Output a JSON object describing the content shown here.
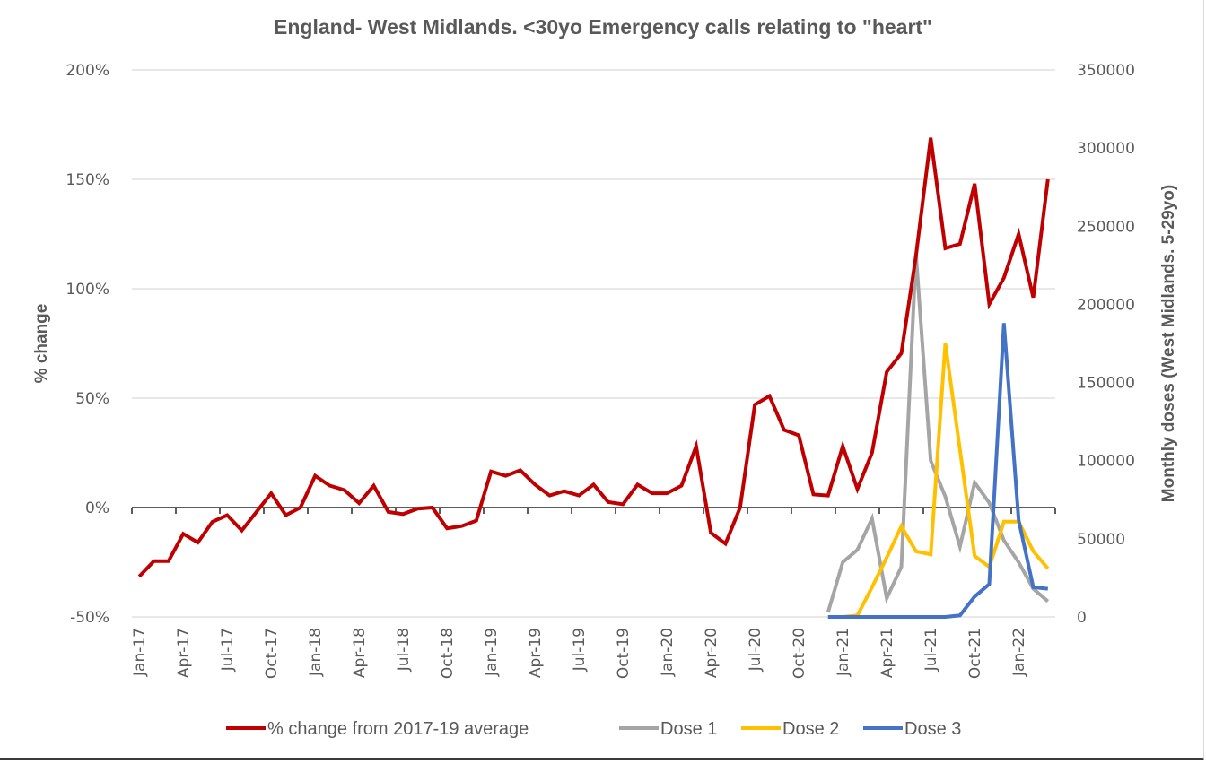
{
  "chart_data": {
    "type": "line",
    "title": "England- West Midlands. <30yo Emergency calls relating to \"heart\"",
    "ylabel": "% change",
    "y2label": "Monthly doses (West Midlands. 5-29yo)",
    "xlabel": "",
    "ylim": [
      -50,
      200
    ],
    "y2lim": [
      0,
      350000
    ],
    "y_ticks": [
      "-50%",
      "0%",
      "50%",
      "100%",
      "150%",
      "200%"
    ],
    "y_tick_values": [
      -50,
      0,
      50,
      100,
      150,
      200
    ],
    "y2_ticks": [
      "0",
      "50000",
      "100000",
      "150000",
      "200000",
      "250000",
      "300000",
      "350000"
    ],
    "y2_tick_values": [
      0,
      50000,
      100000,
      150000,
      200000,
      250000,
      300000,
      350000
    ],
    "grid": true,
    "legend_position": "bottom",
    "x_tick_labels": [
      "Jan-17",
      "Apr-17",
      "Jul-17",
      "Oct-17",
      "Jan-18",
      "Apr-18",
      "Jul-18",
      "Oct-18",
      "Jan-19",
      "Apr-19",
      "Jul-19",
      "Oct-19",
      "Jan-20",
      "Apr-20",
      "Jul-20",
      "Oct-20",
      "Jan-21",
      "Apr-21",
      "Jul-21",
      "Oct-21",
      "Jan-22"
    ],
    "x_months": [
      "Jan-17",
      "Feb-17",
      "Mar-17",
      "Apr-17",
      "May-17",
      "Jun-17",
      "Jul-17",
      "Aug-17",
      "Sep-17",
      "Oct-17",
      "Nov-17",
      "Dec-17",
      "Jan-18",
      "Feb-18",
      "Mar-18",
      "Apr-18",
      "May-18",
      "Jun-18",
      "Jul-18",
      "Aug-18",
      "Sep-18",
      "Oct-18",
      "Nov-18",
      "Dec-18",
      "Jan-19",
      "Feb-19",
      "Mar-19",
      "Apr-19",
      "May-19",
      "Jun-19",
      "Jul-19",
      "Aug-19",
      "Sep-19",
      "Oct-19",
      "Nov-19",
      "Dec-19",
      "Jan-20",
      "Feb-20",
      "Mar-20",
      "Apr-20",
      "May-20",
      "Jun-20",
      "Jul-20",
      "Aug-20",
      "Sep-20",
      "Oct-20",
      "Nov-20",
      "Dec-20",
      "Jan-21",
      "Feb-21",
      "Mar-21",
      "Apr-21",
      "May-21",
      "Jun-21",
      "Jul-21",
      "Aug-21",
      "Sep-21",
      "Oct-21",
      "Nov-21",
      "Dec-21",
      "Jan-22",
      "Feb-22",
      "Mar-22"
    ],
    "series": [
      {
        "name": "% change from 2017-19 average",
        "axis": "left",
        "color": "#c00000",
        "start_index": 0,
        "values": [
          -31.5,
          -24.5,
          -24.5,
          -12,
          -16,
          -6.5,
          -3.5,
          -10.5,
          -2,
          6.5,
          -3.5,
          0,
          14.5,
          10,
          8,
          2,
          10,
          -2,
          -3,
          -0.5,
          0,
          -9.5,
          -8.5,
          -6,
          16.5,
          14.5,
          17,
          10.5,
          5.5,
          7.5,
          5.5,
          10.5,
          2.5,
          1.5,
          10.5,
          6.5,
          6.5,
          10,
          28,
          -11.5,
          -16.5,
          0,
          47,
          51,
          35.5,
          33,
          6,
          5.5,
          28,
          8.5,
          25,
          62,
          70.5,
          115,
          169,
          118.5,
          120.5,
          148,
          93,
          105,
          125,
          96,
          150
        ]
      },
      {
        "name": "Dose 1",
        "axis": "right",
        "color": "#a5a5a5",
        "start_index": 47,
        "values": [
          3000,
          35000,
          43000,
          63000,
          12000,
          32000,
          232000,
          100000,
          77000,
          45000,
          86000,
          73000,
          49000,
          35000,
          18000,
          10000
        ]
      },
      {
        "name": "Dose 2",
        "axis": "right",
        "color": "#ffc000",
        "start_index": 47,
        "values": [
          0,
          0,
          1000,
          19000,
          38000,
          58000,
          42000,
          40000,
          175000,
          107000,
          39000,
          32000,
          61000,
          61000,
          42000,
          31000
        ]
      },
      {
        "name": "Dose 3",
        "axis": "right",
        "color": "#4472c4",
        "start_index": 47,
        "values": [
          0,
          0,
          0,
          0,
          0,
          0,
          0,
          0,
          0,
          1000,
          13000,
          21000,
          188000,
          62000,
          19000,
          18000
        ]
      }
    ]
  }
}
